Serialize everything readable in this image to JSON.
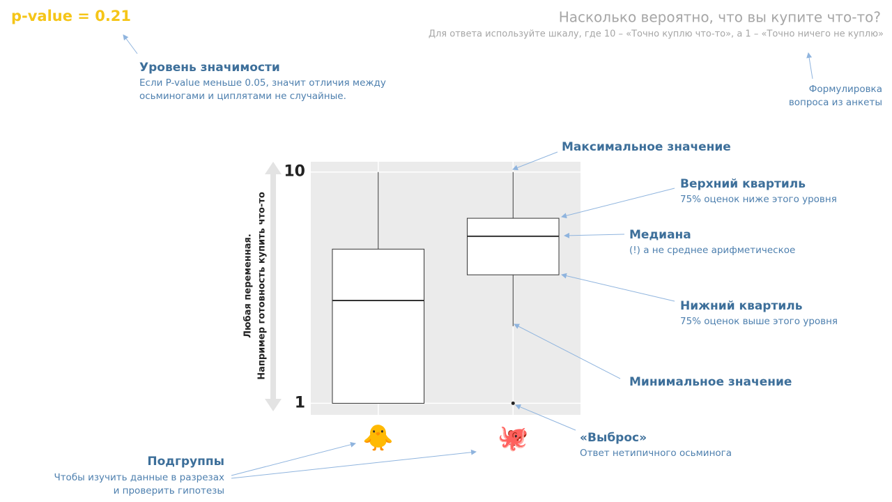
{
  "chart_data": {
    "type": "box",
    "title": "Насколько вероятно, что вы купите что-то?",
    "subtitle": "Для ответа используйте шкалу, где 10 – «Точно куплю что-то», а 1 – «Точно ничего не куплю»",
    "y_label": [
      "Любая переменная.",
      "Например готовность купить что-то"
    ],
    "categories": [
      "🐥",
      "🐙"
    ],
    "boxes": [
      {
        "min": 1,
        "q1": 1,
        "median": 5,
        "q3": 7,
        "max": 10,
        "outliers": []
      },
      {
        "min": 4,
        "q1": 6,
        "median": 7.5,
        "q3": 8.2,
        "max": 10,
        "outliers": [
          1
        ]
      }
    ],
    "ylim": [
      0.55,
      10.4
    ],
    "yticks": [
      1,
      10
    ],
    "grid": true
  },
  "p_value": "p-value = 0.21",
  "annotations": {
    "significance": {
      "title": "Уровень значимости",
      "lines": [
        "Если P-value меньше 0.05, значит отличия между",
        "осьминогами и циплятами не случайные."
      ]
    },
    "question": {
      "lines": [
        "Формулировка",
        "вопроса из анкеты"
      ]
    },
    "max": {
      "title": "Максимальное  значение"
    },
    "q3": {
      "title": "Верхний квартиль",
      "lines": [
        "75% оценок ниже этого уровня"
      ]
    },
    "median": {
      "title": "Медиана",
      "lines": [
        "(!) а не среднее арифметическое"
      ]
    },
    "q1": {
      "title": "Нижний квартиль",
      "lines": [
        "75% оценок выше этого уровня"
      ]
    },
    "min": {
      "title": "Минимальное  значение"
    },
    "outlier": {
      "title": "«Выброс»",
      "lines": [
        "Ответ нетипичного осьминога"
      ]
    },
    "groups": {
      "title": "Подгруппы",
      "lines": [
        "Чтобы изучить данные в разрезах",
        "и проверить гипотезы"
      ]
    }
  }
}
